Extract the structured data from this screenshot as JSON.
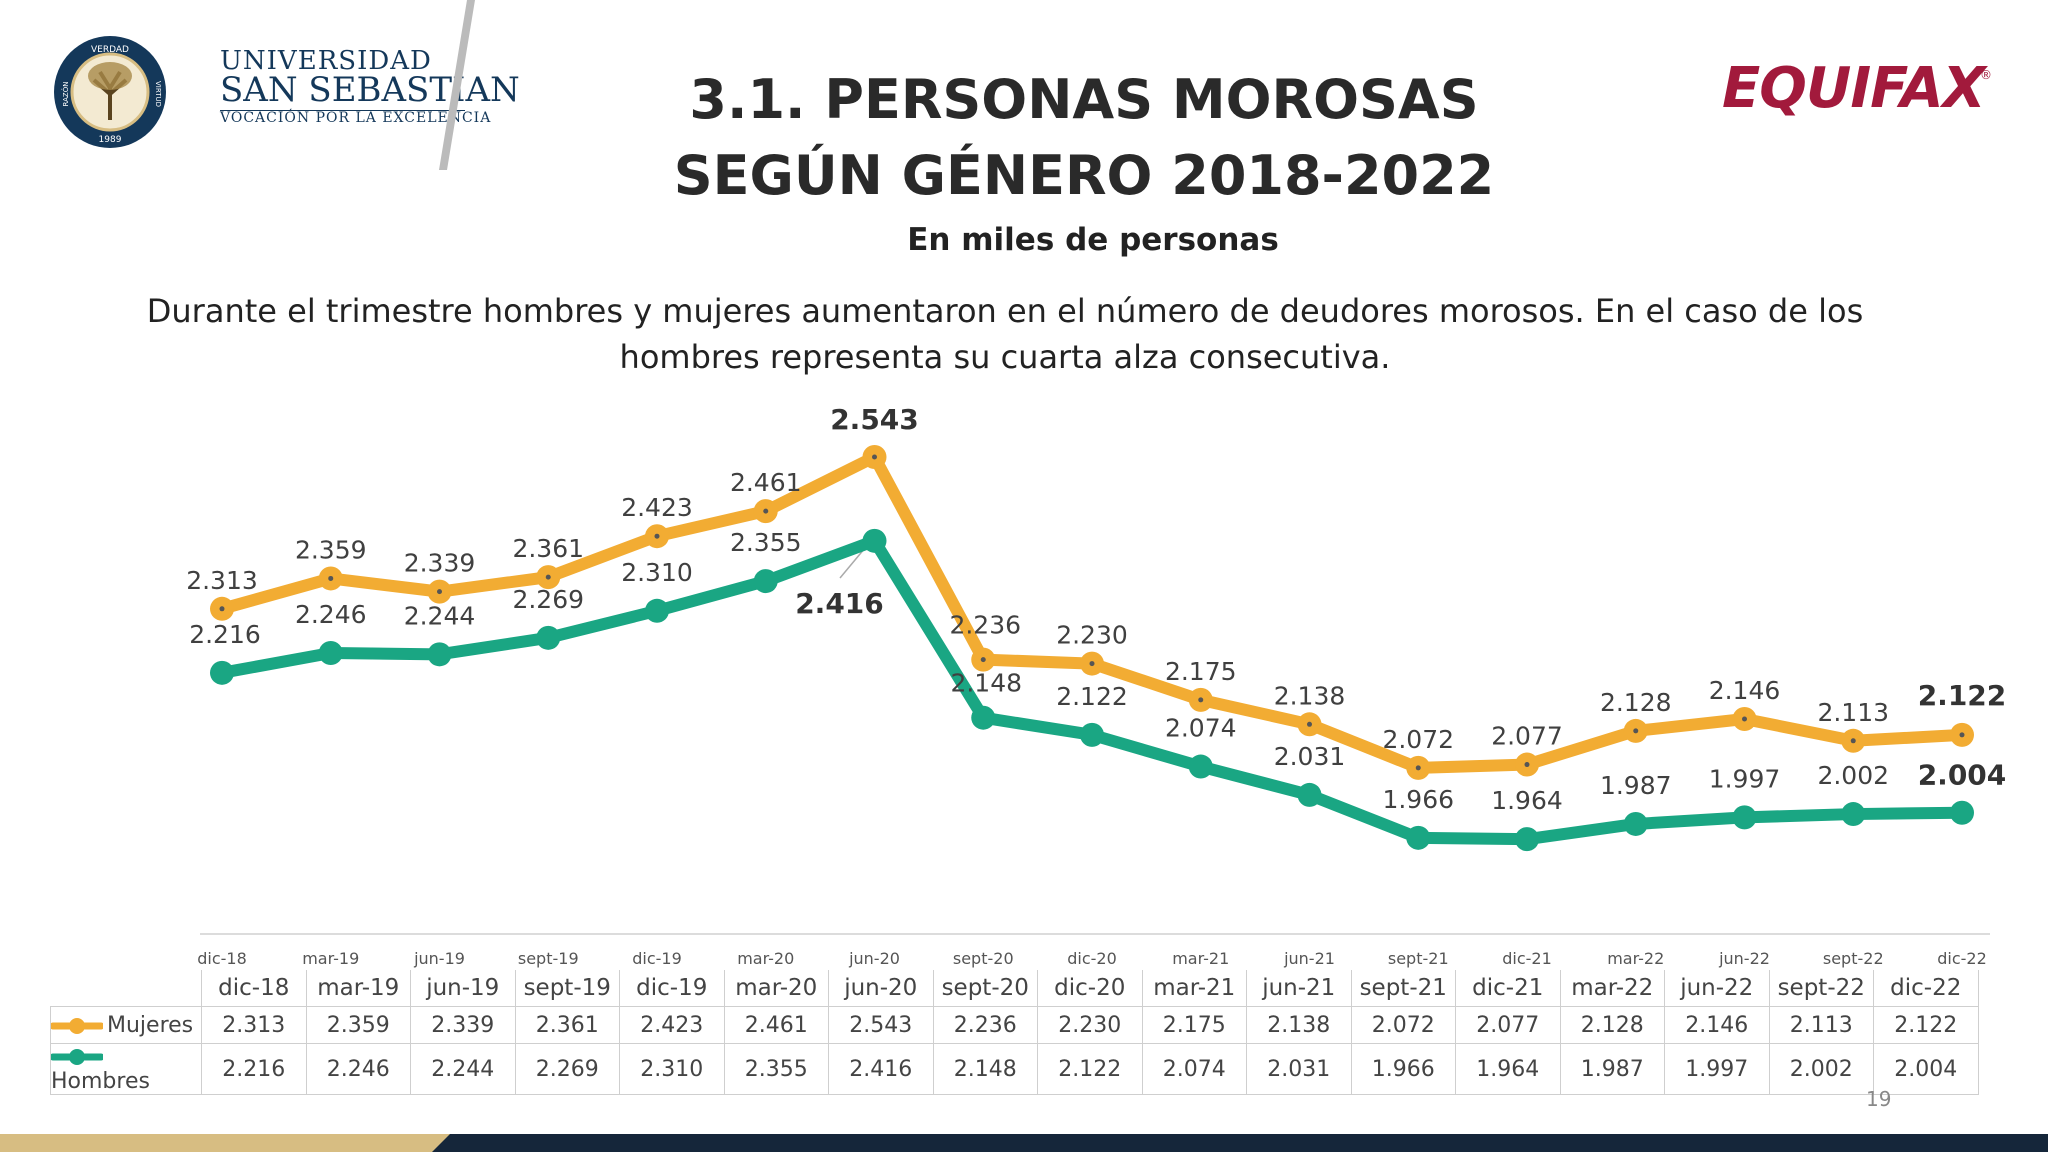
{
  "header": {
    "university": {
      "line1": "UNIVERSIDAD",
      "line2": "SAN SEBASTIAN",
      "line3": "VOCACIÓN POR LA EXCELENCIA",
      "seal_top": "VERDAD",
      "seal_left": "RAZÓN",
      "seal_right": "VIRTUD",
      "seal_year": "1989"
    },
    "equifax": "EQUIFAX",
    "equifax_reg": "®"
  },
  "title_line1": "3.1. PERSONAS MOROSAS",
  "title_line2": "SEGÚN GÉNERO 2018-2022",
  "subtitle": "En miles de personas",
  "description": "Durante el trimestre hombres y mujeres aumentaron en el número de deudores morosos. En el caso de los hombres representa su cuarta alza consecutiva.",
  "page_number": "19",
  "colors": {
    "mujeres": "#f2ac33",
    "hombres": "#1aa683",
    "title": "#2a2a2a",
    "equifax": "#a21a3c",
    "footer_dark": "#15263a",
    "footer_gold": "#d7bd82"
  },
  "chart_data": {
    "type": "line",
    "categories": [
      "dic-18",
      "mar-19",
      "jun-19",
      "sept-19",
      "dic-19",
      "mar-20",
      "jun-20",
      "sept-20",
      "dic-20",
      "mar-21",
      "jun-21",
      "sept-21",
      "dic-21",
      "mar-22",
      "jun-22",
      "sept-22",
      "dic-22"
    ],
    "series": [
      {
        "name": "Mujeres",
        "color": "#f2ac33",
        "values": [
          2.313,
          2.359,
          2.339,
          2.361,
          2.423,
          2.461,
          2.543,
          2.236,
          2.23,
          2.175,
          2.138,
          2.072,
          2.077,
          2.128,
          2.146,
          2.113,
          2.122
        ]
      },
      {
        "name": "Hombres",
        "color": "#1aa683",
        "values": [
          2.216,
          2.246,
          2.244,
          2.269,
          2.31,
          2.355,
          2.416,
          2.148,
          2.122,
          2.074,
          2.031,
          1.966,
          1.964,
          1.987,
          1.997,
          2.002,
          2.004
        ]
      }
    ],
    "labels": {
      "Mujeres": [
        "2.313",
        "2.359",
        "2.339",
        "2.361",
        "2.423",
        "2.461",
        "2.543",
        "2.236",
        "2.230",
        "2.175",
        "2.138",
        "2.072",
        "2.077",
        "2.128",
        "2.146",
        "2.113",
        "2.122"
      ],
      "Hombres": [
        "2.216",
        "2.246",
        "2.244",
        "2.269",
        "2.310",
        "2.355",
        "2.416",
        "2.148",
        "2.122",
        "2.074",
        "2.031",
        "1.966",
        "1.964",
        "1.987",
        "1.997",
        "2.002",
        "2.004"
      ]
    },
    "bold_labels": {
      "Mujeres": [
        6,
        16
      ],
      "Hombres": [
        6,
        16
      ]
    },
    "grid": false,
    "legend": "data-table"
  }
}
